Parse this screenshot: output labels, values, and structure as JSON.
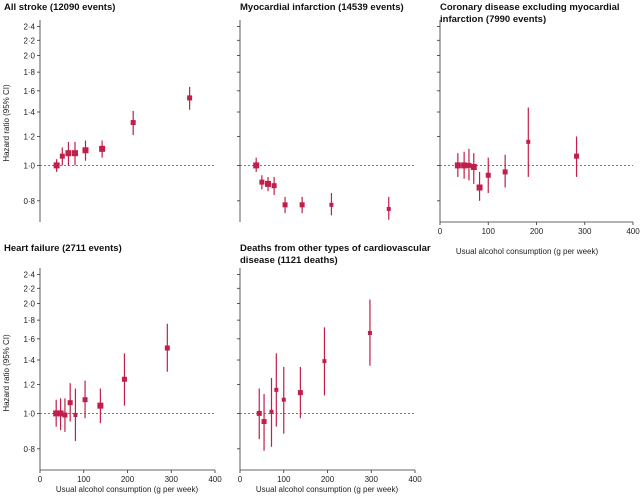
{
  "colors": {
    "marker": "#c21e4a",
    "reference_line": "#3a7d72",
    "axis": "#333333"
  },
  "ylabel": "Hazard ratio (95% CI)",
  "xlabel": "Usual alcohol consumption (g per week)",
  "chart_data": [
    {
      "type": "scatter",
      "title": "All stroke (12090 events)",
      "ylabel": "Hazard ratio (95% CI)",
      "xlabel": "",
      "xlim": [
        0,
        400
      ],
      "ylim": [
        0.7,
        2.5
      ],
      "yscale": "log",
      "reference_y": 1.0,
      "xticks": [],
      "yticks": [
        "0·8",
        "1·0",
        "1·2",
        "1·4",
        "1·6",
        "1·8",
        "2·0",
        "2·2",
        "2·4"
      ],
      "points": [
        {
          "x": 38,
          "y": 1.0,
          "lo": 0.96,
          "hi": 1.04,
          "size": 6
        },
        {
          "x": 51,
          "y": 1.06,
          "lo": 1.0,
          "hi": 1.12,
          "size": 5
        },
        {
          "x": 65,
          "y": 1.08,
          "lo": 1.0,
          "hi": 1.16,
          "size": 6
        },
        {
          "x": 80,
          "y": 1.08,
          "lo": 1.0,
          "hi": 1.16,
          "size": 6
        },
        {
          "x": 104,
          "y": 1.1,
          "lo": 1.03,
          "hi": 1.17,
          "size": 6
        },
        {
          "x": 142,
          "y": 1.11,
          "lo": 1.05,
          "hi": 1.17,
          "size": 6
        },
        {
          "x": 213,
          "y": 1.31,
          "lo": 1.21,
          "hi": 1.41,
          "size": 5
        },
        {
          "x": 342,
          "y": 1.53,
          "lo": 1.42,
          "hi": 1.64,
          "size": 5
        }
      ]
    },
    {
      "type": "scatter",
      "title": "Myocardial infarction (14539 events)",
      "xlabel": "",
      "xlim": [
        0,
        400
      ],
      "ylim": [
        0.7,
        2.5
      ],
      "yscale": "log",
      "reference_y": 1.0,
      "xticks": [],
      "yticks": [],
      "points": [
        {
          "x": 37,
          "y": 1.0,
          "lo": 0.96,
          "hi": 1.05,
          "size": 6
        },
        {
          "x": 50,
          "y": 0.9,
          "lo": 0.86,
          "hi": 0.94,
          "size": 5
        },
        {
          "x": 64,
          "y": 0.89,
          "lo": 0.85,
          "hi": 0.93,
          "size": 6
        },
        {
          "x": 78,
          "y": 0.88,
          "lo": 0.83,
          "hi": 0.93,
          "size": 5
        },
        {
          "x": 103,
          "y": 0.78,
          "lo": 0.74,
          "hi": 0.82,
          "size": 5
        },
        {
          "x": 142,
          "y": 0.78,
          "lo": 0.74,
          "hi": 0.82,
          "size": 5
        },
        {
          "x": 209,
          "y": 0.78,
          "lo": 0.73,
          "hi": 0.84,
          "size": 4
        },
        {
          "x": 340,
          "y": 0.76,
          "lo": 0.71,
          "hi": 0.82,
          "size": 4
        }
      ]
    },
    {
      "type": "scatter",
      "title": "Coronary disease excluding myocardial infarction (7990 events)",
      "title_lines": [
        "Coronary disease excluding myocardial",
        "infarction (7990 events)"
      ],
      "xlabel": "Usual alcohol consumption (g per week)",
      "xlim": [
        0,
        400
      ],
      "ylim": [
        0.7,
        2.5
      ],
      "yscale": "log",
      "reference_y": 1.0,
      "xticks": [
        "0",
        "100",
        "200",
        "300",
        "400"
      ],
      "yticks": [],
      "points": [
        {
          "x": 37,
          "y": 1.0,
          "lo": 0.93,
          "hi": 1.08,
          "size": 6
        },
        {
          "x": 50,
          "y": 1.0,
          "lo": 0.92,
          "hi": 1.09,
          "size": 6
        },
        {
          "x": 60,
          "y": 1.0,
          "lo": 0.91,
          "hi": 1.11,
          "size": 5
        },
        {
          "x": 70,
          "y": 0.99,
          "lo": 0.89,
          "hi": 1.08,
          "size": 6
        },
        {
          "x": 82,
          "y": 0.87,
          "lo": 0.8,
          "hi": 0.96,
          "size": 6
        },
        {
          "x": 100,
          "y": 0.94,
          "lo": 0.84,
          "hi": 1.05,
          "size": 5
        },
        {
          "x": 135,
          "y": 0.96,
          "lo": 0.87,
          "hi": 1.07,
          "size": 5
        },
        {
          "x": 183,
          "y": 1.16,
          "lo": 0.93,
          "hi": 1.44,
          "size": 4
        },
        {
          "x": 283,
          "y": 1.06,
          "lo": 0.93,
          "hi": 1.2,
          "size": 5
        }
      ]
    },
    {
      "type": "scatter",
      "title": "Heart failure (2711 events)",
      "ylabel": "Hazard ratio (95% CI)",
      "xlabel": "Usual alcohol consumption (g per week)",
      "xlim": [
        0,
        400
      ],
      "ylim": [
        0.7,
        2.5
      ],
      "yscale": "log",
      "reference_y": 1.0,
      "xticks": [
        "0",
        "100",
        "200",
        "300",
        "400"
      ],
      "yticks": [
        "0·8",
        "1·0",
        "1·2",
        "1·4",
        "1·6",
        "1·8",
        "2·0",
        "2·2",
        "2·4"
      ],
      "points": [
        {
          "x": 37,
          "y": 1.0,
          "lo": 0.92,
          "hi": 1.09,
          "size": 6
        },
        {
          "x": 47,
          "y": 1.0,
          "lo": 0.9,
          "hi": 1.1,
          "size": 6
        },
        {
          "x": 57,
          "y": 0.99,
          "lo": 0.89,
          "hi": 1.1,
          "size": 5
        },
        {
          "x": 69,
          "y": 1.07,
          "lo": 0.95,
          "hi": 1.21,
          "size": 5
        },
        {
          "x": 81,
          "y": 0.99,
          "lo": 0.84,
          "hi": 1.17,
          "size": 4
        },
        {
          "x": 103,
          "y": 1.09,
          "lo": 0.97,
          "hi": 1.23,
          "size": 5
        },
        {
          "x": 138,
          "y": 1.05,
          "lo": 0.94,
          "hi": 1.17,
          "size": 6
        },
        {
          "x": 193,
          "y": 1.24,
          "lo": 1.05,
          "hi": 1.46,
          "size": 5
        },
        {
          "x": 291,
          "y": 1.51,
          "lo": 1.3,
          "hi": 1.76,
          "size": 5
        }
      ]
    },
    {
      "type": "scatter",
      "title": "Deaths from other types of cardiovascular disease (1121 deaths)",
      "title_lines": [
        "Deaths from other types of cardiovascular",
        "disease (1121 deaths)"
      ],
      "xlabel": "Usual alcohol consumption (g per week)",
      "xlim": [
        0,
        400
      ],
      "ylim": [
        0.7,
        2.5
      ],
      "yscale": "log",
      "reference_y": 1.0,
      "xticks": [
        "0",
        "100",
        "200",
        "300",
        "400"
      ],
      "yticks": [],
      "points": [
        {
          "x": 44,
          "y": 1.0,
          "lo": 0.85,
          "hi": 1.17,
          "size": 5
        },
        {
          "x": 55,
          "y": 0.95,
          "lo": 0.79,
          "hi": 1.13,
          "size": 5
        },
        {
          "x": 72,
          "y": 1.01,
          "lo": 0.81,
          "hi": 1.25,
          "size": 4
        },
        {
          "x": 83,
          "y": 1.16,
          "lo": 0.92,
          "hi": 1.46,
          "size": 4
        },
        {
          "x": 100,
          "y": 1.09,
          "lo": 0.88,
          "hi": 1.34,
          "size": 4
        },
        {
          "x": 138,
          "y": 1.14,
          "lo": 0.97,
          "hi": 1.34,
          "size": 5
        },
        {
          "x": 193,
          "y": 1.39,
          "lo": 1.12,
          "hi": 1.72,
          "size": 4
        },
        {
          "x": 297,
          "y": 1.66,
          "lo": 1.35,
          "hi": 2.05,
          "size": 4
        }
      ]
    }
  ]
}
